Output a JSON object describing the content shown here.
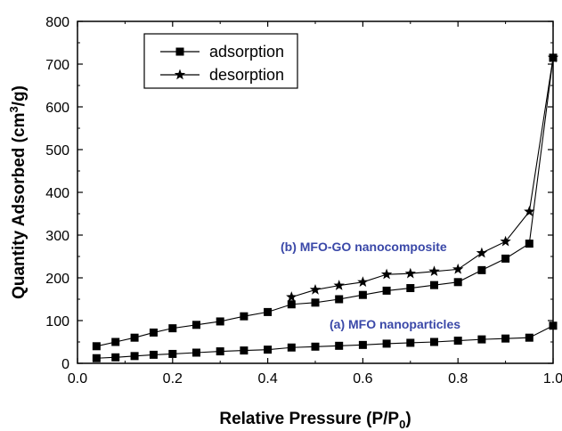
{
  "chart_data": {
    "type": "line",
    "xlabel": "Relative Pressure (P/P",
    "xlabel_sub": "0",
    "xlabel_end": ")",
    "ylabel_pre": "Quantity Adsorbed (cm",
    "ylabel_sup": "3",
    "ylabel_post": "/g)",
    "xlim": [
      0.0,
      1.0
    ],
    "ylim": [
      0,
      800
    ],
    "xticks": [
      "0.0",
      "0.2",
      "0.4",
      "0.6",
      "0.8",
      "1.0"
    ],
    "yticks": [
      "0",
      "100",
      "200",
      "300",
      "400",
      "500",
      "600",
      "700",
      "800"
    ],
    "grid": false,
    "legend": {
      "position": "top-left",
      "entries": [
        "adsorption",
        "desorption"
      ]
    },
    "annotations": [
      {
        "text": "(b) MFO-GO nanocomposite",
        "color": "#3a48a8"
      },
      {
        "text": "(a) MFO nanoparticles",
        "color": "#3a48a8"
      }
    ],
    "series": [
      {
        "name": "adsorption",
        "marker": "square",
        "curve": "(b) MFO-GO nanocomposite",
        "x": [
          0.04,
          0.08,
          0.12,
          0.16,
          0.2,
          0.25,
          0.3,
          0.35,
          0.4,
          0.45,
          0.5,
          0.55,
          0.6,
          0.65,
          0.7,
          0.75,
          0.8,
          0.85,
          0.9,
          0.95,
          1.0
        ],
        "y": [
          40,
          50,
          60,
          72,
          82,
          90,
          98,
          110,
          120,
          138,
          142,
          150,
          160,
          170,
          176,
          183,
          190,
          218,
          245,
          280,
          715
        ]
      },
      {
        "name": "desorption",
        "marker": "star",
        "curve": "(b) MFO-GO nanocomposite",
        "x": [
          0.45,
          0.5,
          0.55,
          0.6,
          0.65,
          0.7,
          0.75,
          0.8,
          0.85,
          0.9,
          0.95,
          1.0
        ],
        "y": [
          155,
          172,
          182,
          190,
          208,
          210,
          215,
          220,
          258,
          285,
          355,
          715
        ]
      },
      {
        "name": "adsorption",
        "marker": "square",
        "curve": "(a) MFO nanoparticles",
        "x": [
          0.04,
          0.08,
          0.12,
          0.16,
          0.2,
          0.25,
          0.3,
          0.35,
          0.4,
          0.45,
          0.5,
          0.55,
          0.6,
          0.65,
          0.7,
          0.75,
          0.8,
          0.85,
          0.9,
          0.95,
          1.0
        ],
        "y": [
          12,
          14,
          17,
          20,
          22,
          25,
          28,
          30,
          32,
          37,
          39,
          41,
          43,
          46,
          48,
          50,
          53,
          56,
          58,
          60,
          88
        ]
      }
    ]
  }
}
